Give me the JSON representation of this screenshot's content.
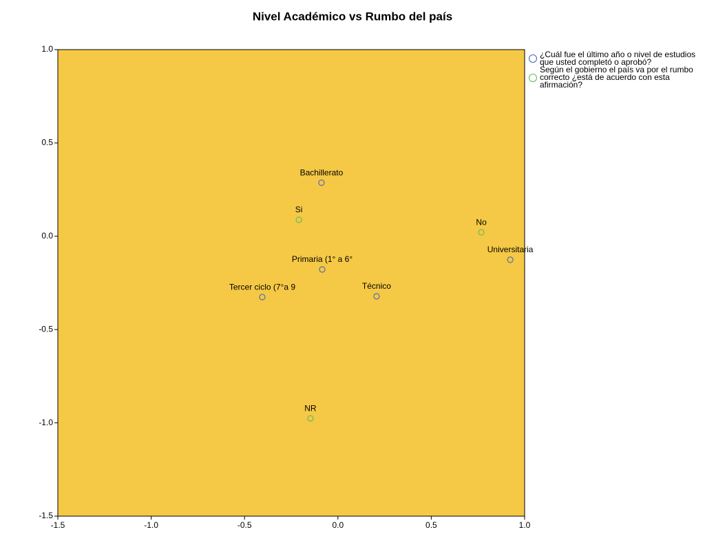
{
  "chart_data": {
    "type": "scatter",
    "title": "Nivel Académico vs Rumbo del país",
    "xlim": [
      -1.5,
      1.0
    ],
    "ylim": [
      -1.5,
      1.0
    ],
    "xticks": [
      -1.5,
      {
        "value": -1.0,
        "label": "-1.0"
      },
      -0.5,
      {
        "value": 0.0,
        "label": "0.0"
      },
      0.5,
      {
        "value": 1.0,
        "label": "1.0"
      }
    ],
    "yticks": [
      -1.5,
      {
        "value": -1.0,
        "label": "-1.0"
      },
      -0.5,
      {
        "value": 0.0,
        "label": "0.0"
      },
      0.5,
      {
        "value": 1.0,
        "label": "1.0"
      }
    ],
    "background": "#f5c945",
    "series": [
      {
        "name": "¿Cuál fue el último año o nivel de estudios que usted completó o aprobó?",
        "color": "#4a63b0",
        "labels": [
          "Bachillerato",
          "Primaria (1° a 6°",
          "Tercer ciclo (7°a 9",
          "Técnico",
          "Universitaria"
        ],
        "x": [
          -0.088,
          -0.084,
          -0.405,
          0.207,
          0.923
        ],
        "values": [
          0.287,
          -0.178,
          -0.326,
          -0.322,
          -0.126
        ]
      },
      {
        "name": "Según el gobierno el país va por el rumbo correcto ¿está de acuerdo con esta afirmación?",
        "color": "#5fb85a",
        "labels": [
          "Si",
          "No",
          "NR"
        ],
        "x": [
          -0.209,
          0.768,
          -0.147
        ],
        "values": [
          0.088,
          0.021,
          -0.976
        ]
      }
    ]
  }
}
